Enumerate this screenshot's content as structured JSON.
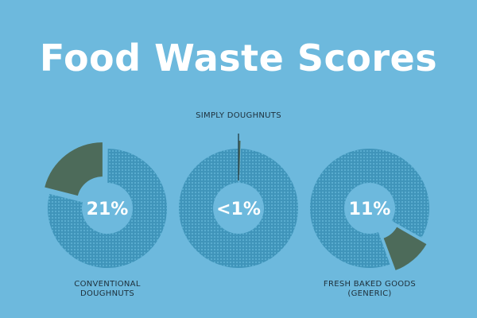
{
  "chart_data": {
    "type": "donut",
    "title": "Food Waste Scores",
    "categories": [
      "CONVENTIONAL DOUGHNUTS",
      "SIMPLY DOUGHNUTS",
      "FRESH BAKED GOODS (GENERIC)"
    ],
    "values": [
      21,
      0.5,
      11
    ],
    "value_labels": [
      "21%",
      "<1%",
      "11%"
    ],
    "ring_color": "#3f94ba",
    "slice_color": "#4d6b5a"
  }
}
